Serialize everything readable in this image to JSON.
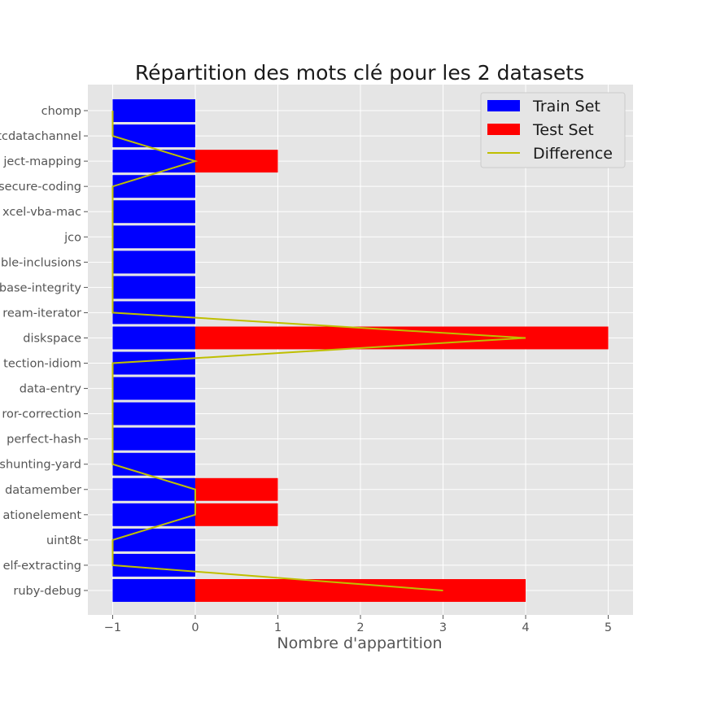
{
  "chart_data": {
    "type": "bar",
    "orientation": "horizontal",
    "title": "Répartition des mots clé pour les 2 datasets",
    "xlabel": "Nombre d'appartition",
    "ylabel": "",
    "categories": [
      "chomp",
      "rtcdatachannel",
      "object-mapping",
      "secure-coding",
      "excel-vba-mac",
      "jco",
      "file-inclusions",
      "database-integrity",
      "stream-iterator",
      "diskspace",
      "detection-idiom",
      "data-entry",
      "error-correction",
      "perfect-hash",
      "shunting-yard",
      "datamember",
      "relationelement",
      "uint8t",
      "self-extracting",
      "ruby-debug"
    ],
    "category_labels": [
      "chomp",
      "rtcdatachannel",
      "ject-mapping",
      "secure-coding",
      "xcel-vba-mac",
      "jco",
      "ble-inclusions",
      "base-integrity",
      "ream-iterator",
      "diskspace",
      "tection-idiom",
      "data-entry",
      "ror-correction",
      "perfect-hash",
      "shunting-yard",
      "datamember",
      "ationelement",
      "uint8t",
      "elf-extracting",
      "ruby-debug"
    ],
    "series": [
      {
        "name": "Train Set",
        "type": "bar",
        "color": "#0000ff",
        "values": [
          -1,
          -1,
          -1,
          -1,
          -1,
          -1,
          -1,
          -1,
          -1,
          -1,
          -1,
          -1,
          -1,
          -1,
          -1,
          -1,
          -1,
          -1,
          -1,
          -1
        ]
      },
      {
        "name": "Test Set",
        "type": "bar",
        "color": "#ff0000",
        "values": [
          0,
          0,
          1,
          0,
          0,
          0,
          0,
          0,
          0,
          5,
          0,
          0,
          0,
          0,
          0,
          1,
          1,
          0,
          0,
          4
        ]
      },
      {
        "name": "Difference",
        "type": "line",
        "color": "#bfbf00",
        "values": [
          -1,
          -1,
          0,
          -1,
          -1,
          -1,
          -1,
          -1,
          -1,
          4,
          -1,
          -1,
          -1,
          -1,
          -1,
          0,
          0,
          -1,
          -1,
          3
        ]
      }
    ],
    "xlim": [
      -1.3,
      5.3
    ],
    "xticks": [
      -1,
      0,
      1,
      2,
      3,
      4,
      5
    ],
    "xtick_labels": [
      "−1",
      "0",
      "1",
      "2",
      "3",
      "4",
      "5"
    ],
    "grid": true,
    "legend_position": "top-right",
    "colors": {
      "background": "#e5e5e5",
      "grid": "#ffffff",
      "train": "#0000ff",
      "test": "#ff0000",
      "difference": "#bfbf00"
    }
  }
}
